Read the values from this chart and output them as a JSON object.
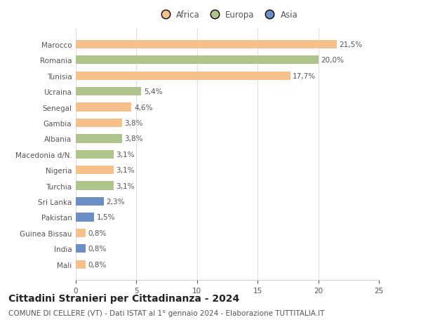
{
  "categories": [
    "Mali",
    "India",
    "Guinea Bissau",
    "Pakistan",
    "Sri Lanka",
    "Turchia",
    "Nigeria",
    "Macedonia d/N.",
    "Albania",
    "Gambia",
    "Senegal",
    "Ucraina",
    "Tunisia",
    "Romania",
    "Marocco"
  ],
  "values": [
    0.8,
    0.8,
    0.8,
    1.5,
    2.3,
    3.1,
    3.1,
    3.1,
    3.8,
    3.8,
    4.6,
    5.4,
    17.7,
    20.0,
    21.5
  ],
  "colors": [
    "#f5c08a",
    "#6b8ec4",
    "#f5c08a",
    "#6b8ec4",
    "#6b8ec4",
    "#aec48a",
    "#f5c08a",
    "#aec48a",
    "#aec48a",
    "#f5c08a",
    "#f5c08a",
    "#aec48a",
    "#f5c08a",
    "#aec48a",
    "#f5c08a"
  ],
  "labels": [
    "0,8%",
    "0,8%",
    "0,8%",
    "1,5%",
    "2,3%",
    "3,1%",
    "3,1%",
    "3,1%",
    "3,8%",
    "3,8%",
    "4,6%",
    "5,4%",
    "17,7%",
    "20,0%",
    "21,5%"
  ],
  "legend": [
    {
      "label": "Africa",
      "color": "#f5c08a"
    },
    {
      "label": "Europa",
      "color": "#aec48a"
    },
    {
      "label": "Asia",
      "color": "#6b8ec4"
    }
  ],
  "xlim": [
    0,
    25
  ],
  "xticks": [
    0,
    5,
    10,
    15,
    20,
    25
  ],
  "title1": "Cittadini Stranieri per Cittadinanza - 2024",
  "title2": "COMUNE DI CELLERE (VT) - Dati ISTAT al 1° gennaio 2024 - Elaborazione TUTTITALIA.IT",
  "background_color": "#ffffff",
  "bar_height": 0.55,
  "label_fontsize": 7.5,
  "tick_fontsize": 7.5,
  "title1_fontsize": 10,
  "title2_fontsize": 7.5
}
